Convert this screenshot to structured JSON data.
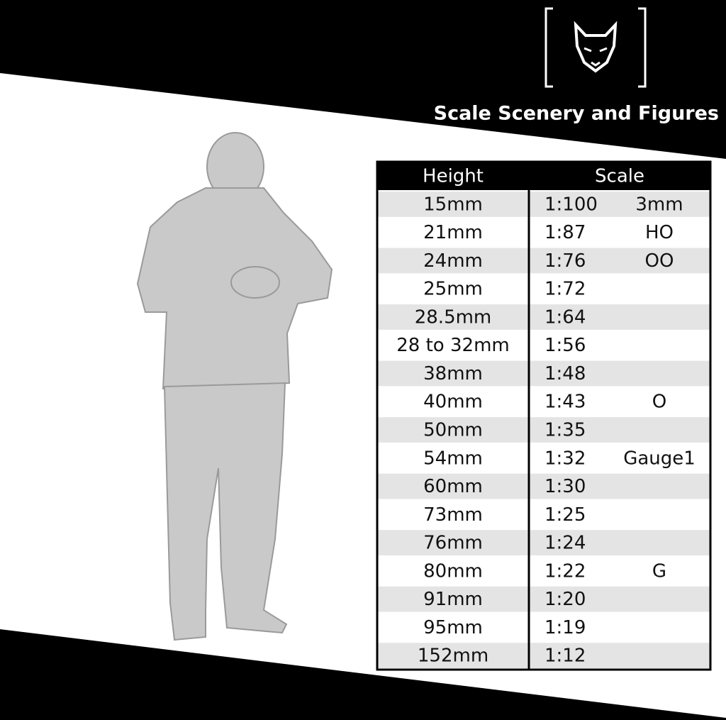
{
  "brand": "Scale Scenery and Figures",
  "table": {
    "header": [
      "Height",
      "Scale"
    ],
    "rows": [
      {
        "height": "15mm",
        "scale": "1:100",
        "gauge": "3mm"
      },
      {
        "height": "21mm",
        "scale": "1:87",
        "gauge": "HO"
      },
      {
        "height": "24mm",
        "scale": "1:76",
        "gauge": "OO"
      },
      {
        "height": "25mm",
        "scale": "1:72"
      },
      {
        "height": "28.5mm",
        "scale": "1:64"
      },
      {
        "height": "28 to 32mm",
        "scale": "1:56"
      },
      {
        "height": "38mm",
        "scale": "1:48"
      },
      {
        "height": "40mm",
        "scale": "1:43",
        "gauge": "O"
      },
      {
        "height": "50mm",
        "scale": "1:35"
      },
      {
        "height": "54mm",
        "scale": "1:32",
        "gauge": "Gauge1"
      },
      {
        "height": "60mm",
        "scale": "1:30"
      },
      {
        "height": "73mm",
        "scale": "1:25"
      },
      {
        "height": "76mm",
        "scale": "1:24"
      },
      {
        "height": "80mm",
        "scale": "1:22",
        "gauge": "G"
      },
      {
        "height": "91mm",
        "scale": "1:20"
      },
      {
        "height": "95mm",
        "scale": "1:19"
      },
      {
        "height": "152mm",
        "scale": "1:12"
      }
    ]
  }
}
